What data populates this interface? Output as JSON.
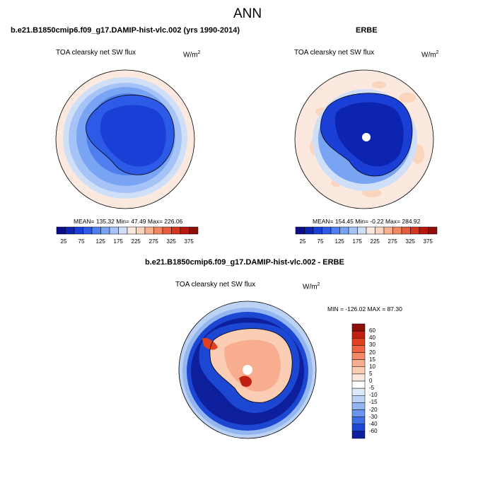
{
  "figure_title": "ANN",
  "panels": {
    "model": {
      "header": "b.e21.B1850cmip6.f09_g17.DAMIP-hist-vlc.002 (yrs 1990-2014)",
      "variable": "TOA clearsky net SW flux",
      "units_base": "W/m",
      "units_exp": "2",
      "stats": "MEAN= 135.32  Min=  47.49  Max= 226.06"
    },
    "obs": {
      "header": "ERBE",
      "variable": "TOA clearsky net SW flux",
      "units_base": "W/m",
      "units_exp": "2",
      "stats": "MEAN= 154.45  Min=  -0.22  Max= 284.92"
    },
    "diff": {
      "header": "b.e21.B1850cmip6.f09_g17.DAMIP-hist-vlc.002 - ERBE",
      "variable": "TOA clearsky net SW flux",
      "units_base": "W/m",
      "units_exp": "2",
      "stats": "MIN = -126.02  MAX =  87.30"
    }
  },
  "colorbar_abs": {
    "tick_labels": [
      "25",
      "75",
      "125",
      "175",
      "225",
      "275",
      "325",
      "375"
    ],
    "colors": [
      "#0c0d8a",
      "#0d24b0",
      "#1a3fd6",
      "#2d5ae6",
      "#4f7fee",
      "#79a3f3",
      "#a5c3f6",
      "#d0dff8",
      "#fbe9df",
      "#fbd4bd",
      "#f7b08f",
      "#f28862",
      "#e85c3c",
      "#d4351f",
      "#b51810",
      "#8e0f0a"
    ]
  },
  "colorbar_diff": {
    "tick_labels": [
      "60",
      "40",
      "30",
      "20",
      "15",
      "10",
      "5",
      "0",
      "-5",
      "-10",
      "-15",
      "-20",
      "-30",
      "-40",
      "-60"
    ],
    "colors": [
      "#8e0f0a",
      "#c11f12",
      "#e0401f",
      "#ef6541",
      "#f58a66",
      "#f8ad8e",
      "#fbcdb5",
      "#fbe8dd",
      "#ffffff",
      "#dde9f8",
      "#bcd2f5",
      "#93b6f1",
      "#6a95ec",
      "#3f6ee4",
      "#1c47d2",
      "#0d1f9c"
    ]
  }
}
